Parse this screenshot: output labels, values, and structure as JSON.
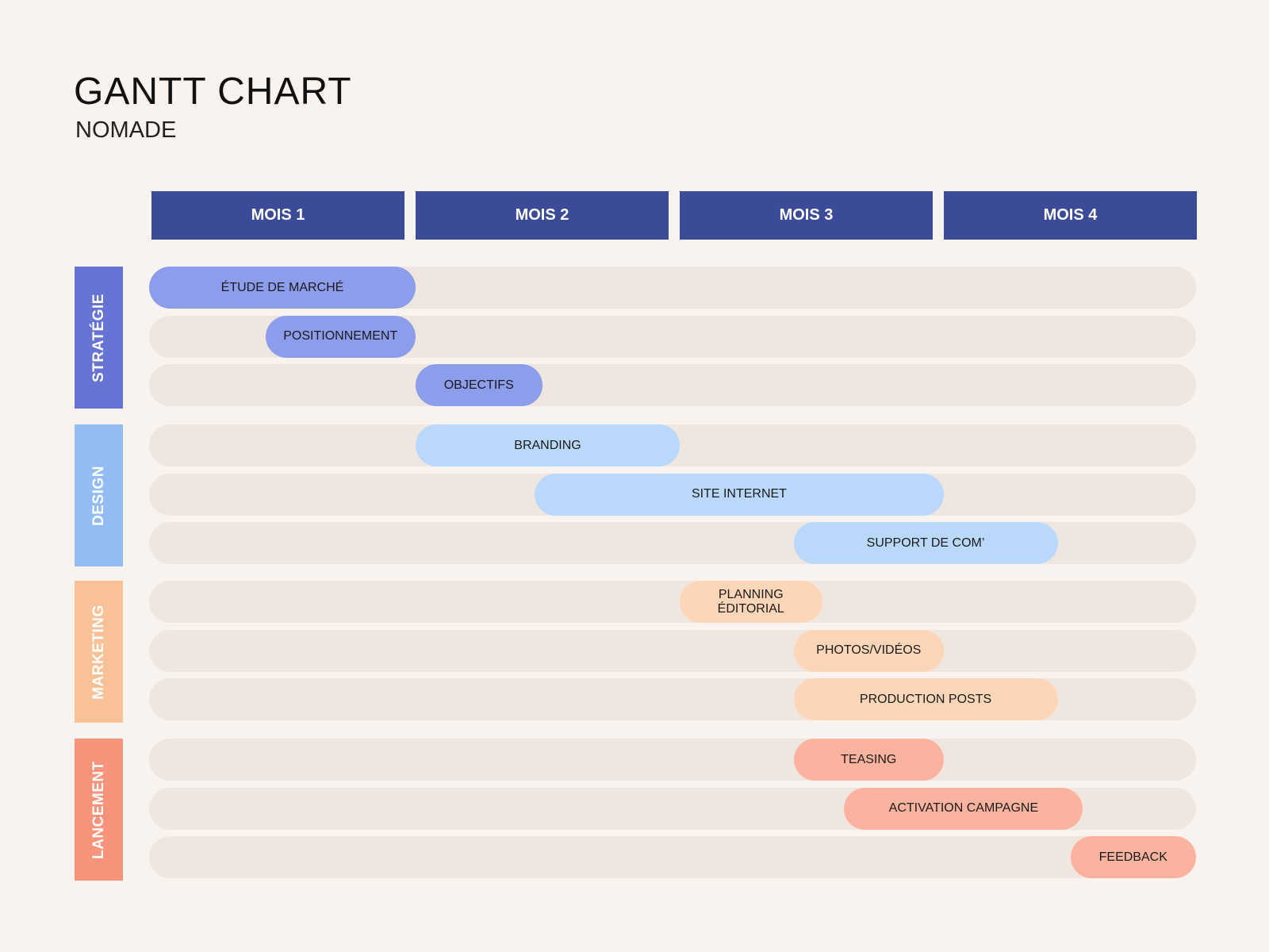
{
  "header": {
    "title": "GANTT CHART",
    "subtitle": "NOMADE"
  },
  "chart_data": {
    "type": "gantt",
    "months": [
      "MOIS 1",
      "MOIS 2",
      "MOIS 3",
      "MOIS 4"
    ],
    "groups": [
      {
        "name": "STRATÉGIE",
        "color": "#6673d2",
        "bar_color": "#8c9deb",
        "tasks": [
          {
            "label": "ÉTUDE DE MARCHÉ",
            "start": 0,
            "end": 1
          },
          {
            "label": "POSITIONNEMENT",
            "start": 0.45,
            "end": 1
          },
          {
            "label": "OBJECTIFS",
            "start": 1,
            "end": 1.5
          }
        ]
      },
      {
        "name": "DESIGN",
        "color": "#92bcf3",
        "bar_color": "#b9d8fc",
        "tasks": [
          {
            "label": "BRANDING",
            "start": 1,
            "end": 2
          },
          {
            "label": "SITE INTERNET",
            "start": 1.47,
            "end": 3
          },
          {
            "label": "SUPPORT DE COM’",
            "start": 2.45,
            "end": 3.45
          }
        ]
      },
      {
        "name": "MARKETING",
        "color": "#f8c198",
        "bar_color": "#fdd5b8",
        "tasks": [
          {
            "label": "PLANNING ÉDITORIAL",
            "start": 2,
            "end": 2.5
          },
          {
            "label": "PHOTOS/VIDÉOS",
            "start": 2.45,
            "end": 3
          },
          {
            "label": "PRODUCTION POSTS",
            "start": 2.45,
            "end": 3.45
          }
        ]
      },
      {
        "name": "LANCEMENT",
        "color": "#f6937a",
        "bar_color": "#fbb39f",
        "tasks": [
          {
            "label": "TEASING",
            "start": 2.45,
            "end": 3
          },
          {
            "label": "ACTIVATION CAMPAGNE",
            "start": 2.65,
            "end": 3.55
          },
          {
            "label": "FEEDBACK",
            "start": 3.5,
            "end": 4
          }
        ]
      }
    ]
  }
}
